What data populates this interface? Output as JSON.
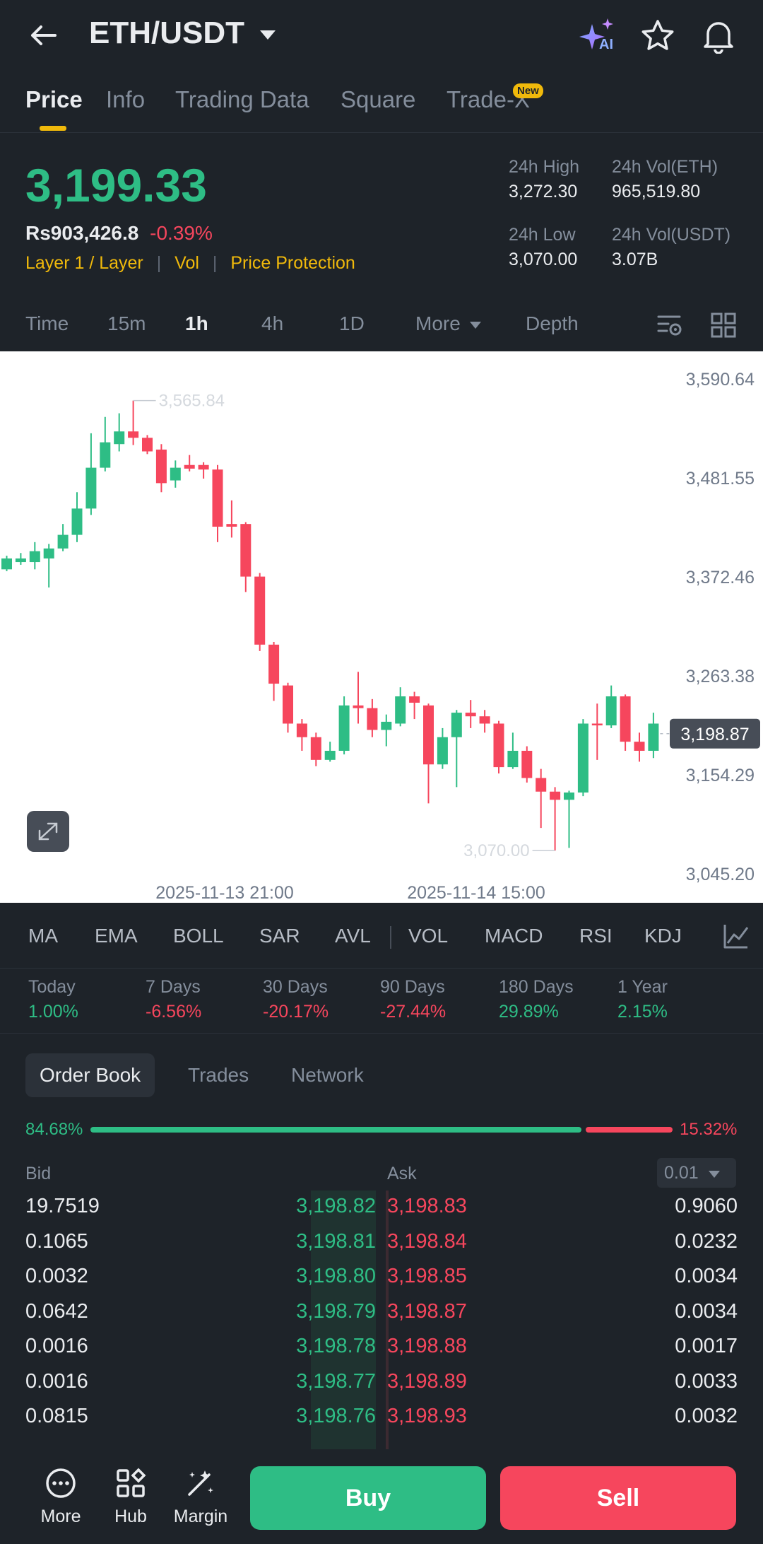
{
  "header": {
    "pair": "ETH/USDT",
    "ai_badge": "AI"
  },
  "tabs": [
    {
      "label": "Price"
    },
    {
      "label": "Info"
    },
    {
      "label": "Trading Data"
    },
    {
      "label": "Square"
    },
    {
      "label": "Trade-X"
    }
  ],
  "new_badge": "New",
  "price": {
    "last": "3,199.33",
    "fiat": "Rs903,426.8",
    "change": "-0.39%",
    "tags": [
      "Layer 1 / Layer",
      "Vol",
      "Price Protection"
    ]
  },
  "stats": {
    "high_label": "24h High",
    "high": "3,272.30",
    "low_label": "24h Low",
    "low": "3,070.00",
    "vol_eth_label": "24h Vol(ETH)",
    "vol_eth": "965,519.80",
    "vol_usdt_label": "24h Vol(USDT)",
    "vol_usdt": "3.07B"
  },
  "intervals": [
    "Time",
    "15m",
    "1h",
    "4h",
    "1D",
    "More",
    "Depth"
  ],
  "chart_data": {
    "type": "candlestick",
    "y_ticks": [
      "3,590.64",
      "3,481.55",
      "3,372.46",
      "3,263.38",
      "3,154.29",
      "3,045.20"
    ],
    "x_ticks": [
      "2025-11-13 21:00",
      "2025-11-14 15:00"
    ],
    "ylim": [
      3045.2,
      3590.64
    ],
    "current_price_label": "3,198.87",
    "high_marker": "3,565.84",
    "low_marker": "3,070.00",
    "candles": [
      {
        "o": 3380,
        "h": 3395,
        "l": 3378,
        "c": 3392
      },
      {
        "o": 3388,
        "h": 3398,
        "l": 3385,
        "c": 3392
      },
      {
        "o": 3388,
        "h": 3410,
        "l": 3380,
        "c": 3400
      },
      {
        "o": 3392,
        "h": 3408,
        "l": 3360,
        "c": 3403
      },
      {
        "o": 3403,
        "h": 3430,
        "l": 3400,
        "c": 3418
      },
      {
        "o": 3418,
        "h": 3465,
        "l": 3410,
        "c": 3447
      },
      {
        "o": 3447,
        "h": 3530,
        "l": 3440,
        "c": 3492
      },
      {
        "o": 3492,
        "h": 3548,
        "l": 3488,
        "c": 3520
      },
      {
        "o": 3518,
        "h": 3552,
        "l": 3510,
        "c": 3532
      },
      {
        "o": 3532,
        "h": 3566,
        "l": 3517,
        "c": 3525
      },
      {
        "o": 3525,
        "h": 3528,
        "l": 3507,
        "c": 3510
      },
      {
        "o": 3512,
        "h": 3518,
        "l": 3465,
        "c": 3475
      },
      {
        "o": 3478,
        "h": 3500,
        "l": 3470,
        "c": 3492
      },
      {
        "o": 3495,
        "h": 3506,
        "l": 3488,
        "c": 3491
      },
      {
        "o": 3495,
        "h": 3498,
        "l": 3480,
        "c": 3490
      },
      {
        "o": 3490,
        "h": 3495,
        "l": 3410,
        "c": 3427
      },
      {
        "o": 3430,
        "h": 3456,
        "l": 3415,
        "c": 3427
      },
      {
        "o": 3430,
        "h": 3432,
        "l": 3355,
        "c": 3372
      },
      {
        "o": 3372,
        "h": 3376,
        "l": 3290,
        "c": 3297
      },
      {
        "o": 3297,
        "h": 3300,
        "l": 3235,
        "c": 3254
      },
      {
        "o": 3252,
        "h": 3255,
        "l": 3200,
        "c": 3210
      },
      {
        "o": 3210,
        "h": 3215,
        "l": 3180,
        "c": 3195
      },
      {
        "o": 3195,
        "h": 3200,
        "l": 3163,
        "c": 3170
      },
      {
        "o": 3170,
        "h": 3190,
        "l": 3168,
        "c": 3180
      },
      {
        "o": 3180,
        "h": 3240,
        "l": 3176,
        "c": 3230
      },
      {
        "o": 3230,
        "h": 3267,
        "l": 3210,
        "c": 3227
      },
      {
        "o": 3227,
        "h": 3237,
        "l": 3195,
        "c": 3203
      },
      {
        "o": 3203,
        "h": 3220,
        "l": 3185,
        "c": 3212
      },
      {
        "o": 3210,
        "h": 3250,
        "l": 3207,
        "c": 3240
      },
      {
        "o": 3240,
        "h": 3245,
        "l": 3215,
        "c": 3233
      },
      {
        "o": 3230,
        "h": 3232,
        "l": 3122,
        "c": 3165
      },
      {
        "o": 3165,
        "h": 3205,
        "l": 3160,
        "c": 3195
      },
      {
        "o": 3195,
        "h": 3225,
        "l": 3140,
        "c": 3222
      },
      {
        "o": 3222,
        "h": 3236,
        "l": 3205,
        "c": 3218
      },
      {
        "o": 3218,
        "h": 3225,
        "l": 3200,
        "c": 3210
      },
      {
        "o": 3210,
        "h": 3213,
        "l": 3155,
        "c": 3162
      },
      {
        "o": 3162,
        "h": 3200,
        "l": 3160,
        "c": 3180
      },
      {
        "o": 3180,
        "h": 3185,
        "l": 3145,
        "c": 3150
      },
      {
        "o": 3150,
        "h": 3160,
        "l": 3095,
        "c": 3135
      },
      {
        "o": 3135,
        "h": 3140,
        "l": 3070,
        "c": 3126
      },
      {
        "o": 3126,
        "h": 3136,
        "l": 3073,
        "c": 3134
      },
      {
        "o": 3134,
        "h": 3215,
        "l": 3130,
        "c": 3210
      },
      {
        "o": 3210,
        "h": 3232,
        "l": 3170,
        "c": 3208
      },
      {
        "o": 3208,
        "h": 3252,
        "l": 3205,
        "c": 3240
      },
      {
        "o": 3240,
        "h": 3242,
        "l": 3180,
        "c": 3190
      },
      {
        "o": 3190,
        "h": 3200,
        "l": 3168,
        "c": 3180
      },
      {
        "o": 3180,
        "h": 3222,
        "l": 3172,
        "c": 3210
      }
    ]
  },
  "indicators": [
    "MA",
    "EMA",
    "BOLL",
    "SAR",
    "AVL",
    "VOL",
    "MACD",
    "RSI",
    "KDJ"
  ],
  "performance": [
    {
      "label": "Today",
      "value": "1.00%",
      "dir": "up"
    },
    {
      "label": "7 Days",
      "value": "-6.56%",
      "dir": "down"
    },
    {
      "label": "30 Days",
      "value": "-20.17%",
      "dir": "down"
    },
    {
      "label": "90 Days",
      "value": "-27.44%",
      "dir": "down"
    },
    {
      "label": "180 Days",
      "value": "29.89%",
      "dir": "up"
    },
    {
      "label": "1 Year",
      "value": "2.15%",
      "dir": "up"
    }
  ],
  "orderbook_tabs": [
    "Order Book",
    "Trades",
    "Network"
  ],
  "orderbook": {
    "bid_pct": "84.68%",
    "ask_pct": "15.32%",
    "bid_ratio": 0.8468,
    "bid_label": "Bid",
    "ask_label": "Ask",
    "precision": "0.01",
    "rows": [
      {
        "bid_qty": "19.7519",
        "bid_price": "3,198.82",
        "ask_price": "3,198.83",
        "ask_qty": "0.9060"
      },
      {
        "bid_qty": "0.1065",
        "bid_price": "3,198.81",
        "ask_price": "3,198.84",
        "ask_qty": "0.0232"
      },
      {
        "bid_qty": "0.0032",
        "bid_price": "3,198.80",
        "ask_price": "3,198.85",
        "ask_qty": "0.0034"
      },
      {
        "bid_qty": "0.0642",
        "bid_price": "3,198.79",
        "ask_price": "3,198.87",
        "ask_qty": "0.0034"
      },
      {
        "bid_qty": "0.0016",
        "bid_price": "3,198.78",
        "ask_price": "3,198.88",
        "ask_qty": "0.0017"
      },
      {
        "bid_qty": "0.0016",
        "bid_price": "3,198.77",
        "ask_price": "3,198.89",
        "ask_qty": "0.0033"
      },
      {
        "bid_qty": "0.0815",
        "bid_price": "3,198.76",
        "ask_price": "3,198.93",
        "ask_qty": "0.0032"
      }
    ]
  },
  "bottom": {
    "more": "More",
    "hub": "Hub",
    "margin": "Margin",
    "buy": "Buy",
    "sell": "Sell"
  },
  "colors": {
    "up": "#2ebd85",
    "down": "#f6465d",
    "accent": "#f0b90b",
    "bg": "#1e2329"
  }
}
